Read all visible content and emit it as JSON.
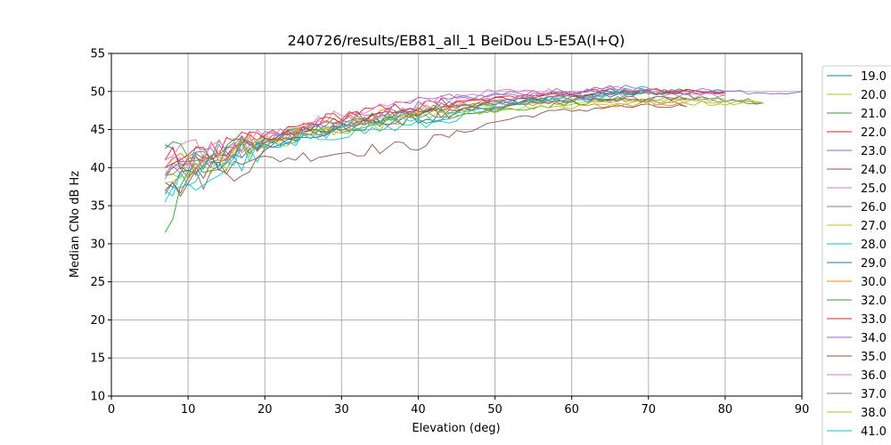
{
  "chart_data": {
    "type": "line",
    "title": "240726/results/EB81_all_1 BeiDou L5-E5A(I+Q)",
    "xlabel": "Elevation (deg)",
    "ylabel": "Median CNo dB Hz",
    "xlim": [
      0,
      90
    ],
    "ylim": [
      10,
      55
    ],
    "x_ticks": [
      "0",
      "10",
      "20",
      "30",
      "40",
      "50",
      "60",
      "70",
      "80",
      "90"
    ],
    "y_ticks": [
      "10",
      "15",
      "20",
      "25",
      "30",
      "35",
      "40",
      "45",
      "50",
      "55"
    ],
    "grid": true,
    "legend_position": "right",
    "series": [
      {
        "name": "19.0",
        "color": "#1f77b4",
        "x": [
          7,
          10,
          15,
          20,
          25,
          30,
          35,
          40,
          45,
          50,
          55,
          60,
          65,
          70,
          75,
          80
        ],
        "y": [
          43,
          40,
          41.5,
          43.5,
          44.5,
          45.5,
          46.5,
          47.5,
          48,
          48.5,
          49,
          49.5,
          50,
          50,
          49.8,
          50
        ]
      },
      {
        "name": "20.0",
        "color": "#bcbd22",
        "x": [
          7,
          10,
          15,
          20,
          25,
          30,
          35,
          40,
          45,
          50,
          55,
          60,
          65,
          70,
          75,
          80,
          85
        ],
        "y": [
          40,
          40.5,
          42,
          43.5,
          44.5,
          45,
          46,
          46.5,
          47.5,
          48,
          48.5,
          48.5,
          48.5,
          49,
          49,
          48.5,
          48.5
        ]
      },
      {
        "name": "21.0",
        "color": "#2ca02c",
        "x": [
          7,
          10,
          15,
          20,
          25,
          30,
          35,
          40,
          45,
          50,
          55,
          60,
          65,
          70,
          75
        ],
        "y": [
          42.5,
          42,
          42.5,
          44,
          45,
          46,
          46.5,
          47.5,
          48,
          48.5,
          49,
          49.5,
          49.5,
          50,
          50
        ]
      },
      {
        "name": "22.0",
        "color": "#d62728",
        "x": [
          7,
          10,
          15,
          20,
          25,
          30,
          35,
          40,
          45,
          50,
          55,
          60,
          65,
          70,
          75,
          80
        ],
        "y": [
          41,
          41.5,
          42.5,
          44,
          45.5,
          47,
          47.5,
          48,
          48.5,
          49,
          49.5,
          50,
          50,
          50,
          50,
          49.8
        ]
      },
      {
        "name": "23.0",
        "color": "#9467bd",
        "x": [
          7,
          10,
          15,
          20,
          25,
          30,
          35,
          40,
          45,
          50,
          55,
          60,
          65,
          70,
          75,
          80,
          85,
          90
        ],
        "y": [
          39,
          41,
          42,
          44,
          45,
          46,
          47.5,
          48.5,
          49,
          49.5,
          50,
          50,
          50,
          50,
          50,
          50,
          50,
          50
        ]
      },
      {
        "name": "24.0",
        "color": "#8c564b",
        "x": [
          7,
          10,
          15,
          20,
          25,
          30,
          35,
          40,
          45,
          50,
          55,
          60,
          65,
          70,
          75
        ],
        "y": [
          36.5,
          38,
          39.5,
          41,
          41.5,
          42,
          42.5,
          43,
          44.5,
          46,
          47,
          47.5,
          48,
          48,
          48
        ]
      },
      {
        "name": "25.0",
        "color": "#e377c2",
        "x": [
          7,
          10,
          15,
          20,
          25,
          30,
          35,
          40,
          45,
          50,
          55,
          60,
          65,
          70,
          75,
          80
        ],
        "y": [
          41,
          42,
          43,
          44,
          45.5,
          47,
          48,
          48.5,
          49.5,
          50,
          50,
          50,
          50.5,
          50,
          50,
          49.5
        ]
      },
      {
        "name": "26.0",
        "color": "#7f7f7f",
        "x": [
          7,
          10,
          15,
          20,
          25,
          30,
          35,
          40,
          45,
          50,
          55,
          60,
          65,
          70,
          75
        ],
        "y": [
          38.5,
          40,
          41.5,
          43,
          44.5,
          45.5,
          46.5,
          47.5,
          48,
          48.5,
          49,
          49,
          49,
          49,
          48
        ]
      },
      {
        "name": "27.0",
        "color": "#bcbd22",
        "x": [
          7,
          10,
          15,
          20,
          25,
          30,
          35,
          40,
          45,
          50,
          55,
          60,
          65,
          70,
          75,
          80
        ],
        "y": [
          39.5,
          40,
          41.5,
          43,
          44.5,
          45,
          46,
          47,
          47.5,
          48,
          48.5,
          49,
          49,
          49,
          49,
          49
        ]
      },
      {
        "name": "28.0",
        "color": "#17becf",
        "x": [
          7,
          10,
          15,
          20,
          25,
          30,
          35,
          40,
          45,
          50,
          55,
          60,
          65,
          70
        ],
        "y": [
          35.5,
          37,
          40,
          42,
          43.5,
          44.5,
          45,
          45.5,
          46.5,
          47.5,
          48.5,
          49,
          50,
          50.5
        ]
      },
      {
        "name": "29.0",
        "color": "#1f77b4",
        "x": [
          7,
          10,
          15,
          20,
          25,
          30,
          35,
          40,
          45,
          50,
          55,
          60,
          65,
          70
        ],
        "y": [
          38,
          40,
          41.5,
          43,
          44,
          45,
          46,
          46.5,
          47.5,
          48.5,
          49,
          49.5,
          49.5,
          50
        ]
      },
      {
        "name": "30.0",
        "color": "#ff7f0e",
        "x": [
          7,
          10,
          15,
          20,
          25,
          30,
          35,
          40,
          45,
          50,
          55,
          60,
          65,
          70,
          75
        ],
        "y": [
          40,
          41,
          42.5,
          44,
          45,
          46.5,
          47,
          47.5,
          48,
          48.5,
          48.5,
          48.5,
          48,
          48.5,
          48.5
        ]
      },
      {
        "name": "32.0",
        "color": "#2ca02c",
        "x": [
          7,
          10,
          15,
          20,
          25,
          30,
          35,
          40,
          45,
          50,
          55,
          60,
          65,
          70,
          75,
          80,
          85
        ],
        "y": [
          31.5,
          38.5,
          42,
          43.5,
          44.5,
          45,
          46,
          46.5,
          47,
          47.5,
          48,
          48.5,
          49,
          49.5,
          49.5,
          49,
          48.5
        ]
      },
      {
        "name": "33.0",
        "color": "#d62728",
        "x": [
          7,
          10,
          15,
          20,
          25,
          30,
          35,
          40,
          45,
          50,
          55,
          60,
          65,
          70,
          75,
          80
        ],
        "y": [
          40,
          41,
          42,
          44,
          45,
          46.5,
          47,
          48,
          48.5,
          49,
          49.5,
          49.5,
          50,
          50,
          50,
          49.8
        ]
      },
      {
        "name": "34.0",
        "color": "#9467bd",
        "x": [
          7,
          10,
          15,
          20,
          25,
          30,
          35,
          40,
          45,
          50,
          55,
          60,
          65,
          70,
          75,
          80
        ],
        "y": [
          39,
          40.5,
          42,
          43.5,
          45,
          46,
          47,
          48,
          49,
          49.5,
          49.5,
          50,
          50.5,
          50.5,
          50,
          50
        ]
      },
      {
        "name": "35.0",
        "color": "#8c564b",
        "x": [
          7,
          10,
          15,
          20,
          25,
          30,
          35,
          40,
          45,
          50,
          55,
          60,
          65,
          70,
          75
        ],
        "y": [
          37,
          38.5,
          40.5,
          42.5,
          44,
          45,
          46,
          47,
          47.5,
          48,
          48.5,
          49,
          49,
          49,
          49
        ]
      },
      {
        "name": "36.0",
        "color": "#e377c2",
        "x": [
          7,
          10,
          15,
          20,
          25,
          30,
          35,
          40,
          45,
          50,
          55,
          60,
          65,
          70,
          75,
          80
        ],
        "y": [
          40,
          41,
          42.5,
          44,
          45,
          46,
          47,
          48,
          48.5,
          49,
          49.5,
          49.5,
          49.5,
          50,
          49.5,
          49.5
        ]
      },
      {
        "name": "37.0",
        "color": "#7f7f7f",
        "x": [
          7,
          10,
          15,
          20,
          25,
          30,
          35,
          40,
          45,
          50,
          55,
          60,
          65,
          70,
          75,
          80,
          85
        ],
        "y": [
          39,
          40,
          41.5,
          43.5,
          44.5,
          45.5,
          46.5,
          47,
          47.5,
          48,
          48.5,
          49,
          49,
          49,
          49,
          49,
          48.5
        ]
      },
      {
        "name": "38.0",
        "color": "#bcbd22",
        "x": [
          7,
          10,
          15,
          20,
          25,
          30,
          35,
          40,
          45,
          50,
          55,
          60,
          65,
          70,
          75,
          80,
          85
        ],
        "y": [
          38,
          39.5,
          41,
          43,
          44,
          45,
          45.5,
          46.5,
          47,
          47.5,
          48,
          48,
          48.5,
          48.5,
          48.5,
          48.5,
          48.5
        ]
      },
      {
        "name": "41.0",
        "color": "#17becf",
        "x": [
          7,
          10,
          15,
          20,
          25,
          30,
          35,
          40,
          45,
          50,
          55,
          60,
          65,
          70
        ],
        "y": [
          37,
          39,
          41,
          42.5,
          44,
          45,
          45.5,
          46.5,
          47,
          48,
          48.5,
          49,
          49.5,
          50
        ]
      }
    ]
  }
}
